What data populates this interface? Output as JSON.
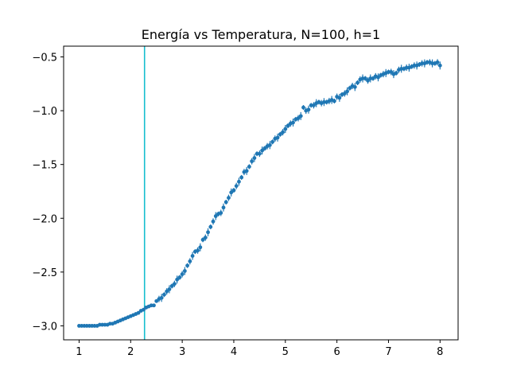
{
  "chart_data": {
    "type": "scatter",
    "title": "Energía vs Temperatura, N=100, h=1",
    "xlabel": "",
    "ylabel": "",
    "xlim": [
      0.7,
      8.35
    ],
    "ylim": [
      -3.13,
      -0.4
    ],
    "xticks": [
      1,
      2,
      3,
      4,
      5,
      6,
      7,
      8
    ],
    "xtick_labels": [
      "1",
      "2",
      "3",
      "4",
      "5",
      "6",
      "7",
      "8"
    ],
    "yticks": [
      -3.0,
      -2.5,
      -2.0,
      -1.5,
      -1.0,
      -0.5
    ],
    "ytick_labels": [
      "−3.0",
      "−2.5",
      "−2.0",
      "−1.5",
      "−1.0",
      "−0.5"
    ],
    "grid": false,
    "vertical_line": {
      "x": 2.269,
      "color": "#17becf"
    },
    "series_color": "#1f77b4",
    "series": [
      {
        "name": "",
        "x": [
          1.0,
          1.05,
          1.1,
          1.15,
          1.2,
          1.25,
          1.3,
          1.35,
          1.4,
          1.45,
          1.5,
          1.55,
          1.6,
          1.65,
          1.7,
          1.75,
          1.8,
          1.85,
          1.9,
          1.95,
          2.0,
          2.05,
          2.1,
          2.15,
          2.2,
          2.25,
          2.3,
          2.35,
          2.4,
          2.45,
          2.5,
          2.55,
          2.6,
          2.65,
          2.7,
          2.75,
          2.8,
          2.85,
          2.9,
          2.95,
          3.0,
          3.05,
          3.1,
          3.15,
          3.2,
          3.25,
          3.3,
          3.35,
          3.4,
          3.45,
          3.5,
          3.55,
          3.6,
          3.65,
          3.7,
          3.75,
          3.8,
          3.85,
          3.9,
          3.95,
          4.0,
          4.05,
          4.1,
          4.15,
          4.2,
          4.25,
          4.3,
          4.35,
          4.4,
          4.45,
          4.5,
          4.55,
          4.6,
          4.65,
          4.7,
          4.75,
          4.8,
          4.85,
          4.9,
          4.95,
          5.0,
          5.05,
          5.1,
          5.15,
          5.2,
          5.25,
          5.3,
          5.35,
          5.4,
          5.45,
          5.5,
          5.55,
          5.6,
          5.65,
          5.7,
          5.75,
          5.8,
          5.85,
          5.9,
          5.95,
          6.0,
          6.05,
          6.1,
          6.15,
          6.2,
          6.25,
          6.3,
          6.35,
          6.4,
          6.45,
          6.5,
          6.55,
          6.6,
          6.65,
          6.7,
          6.75,
          6.8,
          6.85,
          6.9,
          6.95,
          7.0,
          7.05,
          7.1,
          7.15,
          7.2,
          7.25,
          7.3,
          7.35,
          7.4,
          7.45,
          7.5,
          7.55,
          7.6,
          7.65,
          7.7,
          7.75,
          7.8,
          7.85,
          7.9,
          7.95,
          8.0
        ],
        "y": [
          -3.0,
          -3.0,
          -3.0,
          -3.0,
          -3.0,
          -3.0,
          -3.0,
          -3.0,
          -2.99,
          -2.99,
          -2.99,
          -2.99,
          -2.98,
          -2.98,
          -2.97,
          -2.96,
          -2.95,
          -2.94,
          -2.93,
          -2.92,
          -2.91,
          -2.9,
          -2.89,
          -2.88,
          -2.86,
          -2.85,
          -2.83,
          -2.82,
          -2.81,
          -2.81,
          -2.77,
          -2.75,
          -2.74,
          -2.71,
          -2.68,
          -2.66,
          -2.63,
          -2.61,
          -2.57,
          -2.55,
          -2.52,
          -2.49,
          -2.44,
          -2.4,
          -2.35,
          -2.31,
          -2.3,
          -2.27,
          -2.2,
          -2.18,
          -2.13,
          -2.08,
          -2.03,
          -1.98,
          -1.96,
          -1.95,
          -1.9,
          -1.85,
          -1.81,
          -1.76,
          -1.74,
          -1.7,
          -1.66,
          -1.62,
          -1.57,
          -1.56,
          -1.52,
          -1.47,
          -1.44,
          -1.4,
          -1.4,
          -1.37,
          -1.35,
          -1.33,
          -1.32,
          -1.29,
          -1.26,
          -1.25,
          -1.22,
          -1.2,
          -1.17,
          -1.14,
          -1.12,
          -1.11,
          -1.08,
          -1.07,
          -1.05,
          -0.97,
          -1.0,
          -0.99,
          -0.95,
          -0.95,
          -0.93,
          -0.92,
          -0.93,
          -0.92,
          -0.92,
          -0.91,
          -0.9,
          -0.91,
          -0.87,
          -0.88,
          -0.85,
          -0.84,
          -0.82,
          -0.79,
          -0.77,
          -0.78,
          -0.74,
          -0.71,
          -0.7,
          -0.7,
          -0.72,
          -0.7,
          -0.7,
          -0.68,
          -0.69,
          -0.67,
          -0.66,
          -0.65,
          -0.64,
          -0.64,
          -0.66,
          -0.65,
          -0.62,
          -0.61,
          -0.61,
          -0.6,
          -0.6,
          -0.59,
          -0.58,
          -0.58,
          -0.57,
          -0.56,
          -0.56,
          -0.55,
          -0.55,
          -0.56,
          -0.56,
          -0.55,
          -0.58
        ]
      }
    ]
  }
}
